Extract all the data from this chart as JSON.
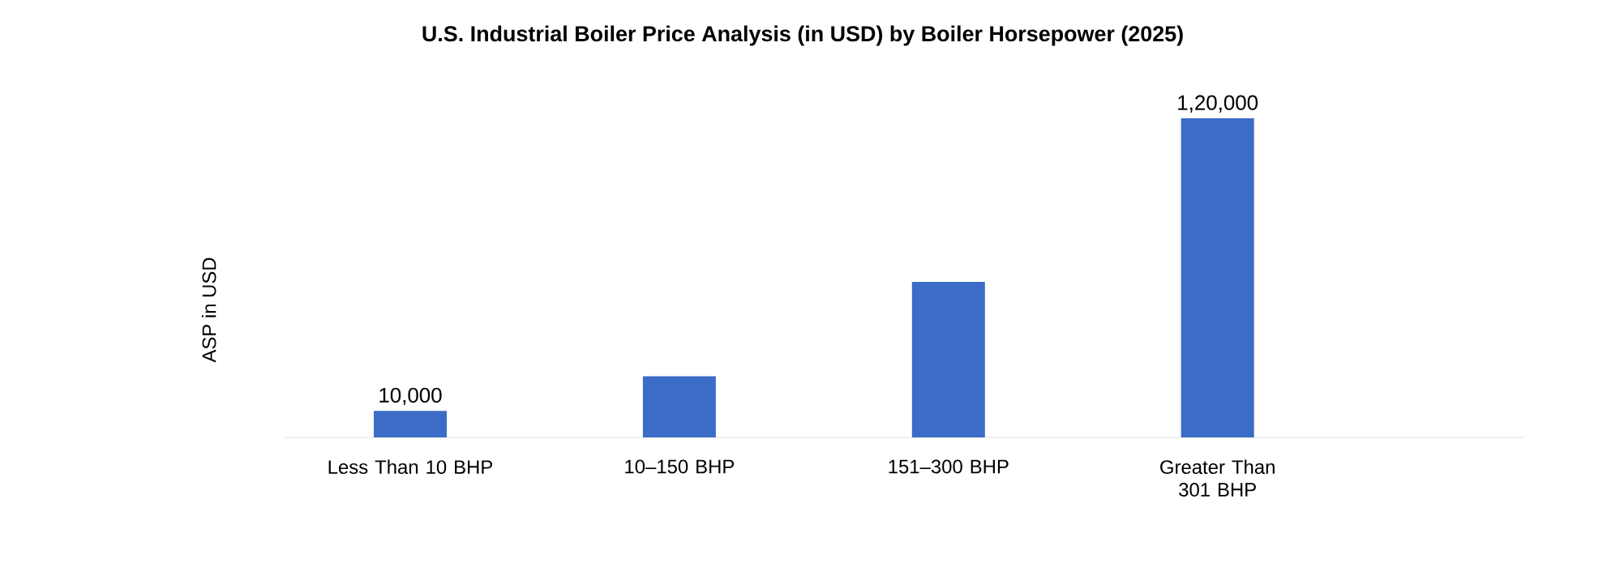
{
  "chart_data": {
    "type": "bar",
    "title": "U.S. Industrial Boiler Price Analysis (in USD) by Boiler Horsepower (2025)",
    "ylabel": "ASP  in USD",
    "categories": [
      "Less Than 10 BHP",
      "10–150 BHP",
      "151–300 BHP",
      "Greater Than 301 BHP"
    ],
    "values": [
      10000,
      23000,
      58500,
      120000
    ],
    "value_labels": [
      "10,000",
      null,
      null,
      "1,20,000"
    ],
    "color": "#3b6cc7"
  }
}
